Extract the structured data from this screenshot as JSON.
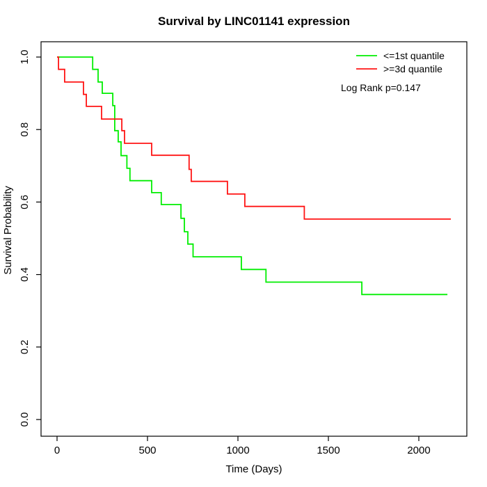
{
  "chart_data": {
    "type": "line",
    "subtype": "kaplan-meier-step",
    "title": "Survival by LINC01141 expression",
    "xlabel": "Time (Days)",
    "ylabel": "Survival Probability",
    "xticks": [
      0,
      500,
      1000,
      1500,
      2000
    ],
    "yticks": [
      "0.0",
      "0.2",
      "0.4",
      "0.6",
      "0.8",
      "1.0"
    ],
    "xlim": [
      -88,
      2265
    ],
    "ylim": [
      -0.046,
      1.042
    ],
    "grid": false,
    "frame": true,
    "background_color": "#ffffff",
    "axis_color": "#000000",
    "legend": {
      "position": "top-right",
      "entries": [
        {
          "label": "<=1st quantile",
          "color": "#00ee00"
        },
        {
          "label": ">=3d quantile",
          "color": "#ff1414"
        }
      ],
      "note": "Log Rank p=0.147"
    },
    "series": [
      {
        "name": "<=1st quantile",
        "color": "#00ee00",
        "points": [
          [
            0,
            1.0
          ],
          [
            197,
            0.966
          ],
          [
            227,
            0.931
          ],
          [
            250,
            0.9
          ],
          [
            308,
            0.866
          ],
          [
            319,
            0.797
          ],
          [
            338,
            0.766
          ],
          [
            354,
            0.728
          ],
          [
            386,
            0.693
          ],
          [
            403,
            0.659
          ],
          [
            523,
            0.626
          ],
          [
            576,
            0.593
          ],
          [
            685,
            0.555
          ],
          [
            704,
            0.518
          ],
          [
            723,
            0.484
          ],
          [
            752,
            0.449
          ],
          [
            1019,
            0.414
          ],
          [
            1155,
            0.379
          ],
          [
            1685,
            0.345
          ],
          [
            2158,
            0.345
          ]
        ]
      },
      {
        "name": ">=3d quantile",
        "color": "#ff1414",
        "points": [
          [
            0,
            1.0
          ],
          [
            8,
            0.966
          ],
          [
            42,
            0.931
          ],
          [
            146,
            0.897
          ],
          [
            162,
            0.864
          ],
          [
            246,
            0.829
          ],
          [
            358,
            0.797
          ],
          [
            373,
            0.762
          ],
          [
            523,
            0.729
          ],
          [
            730,
            0.69
          ],
          [
            742,
            0.657
          ],
          [
            942,
            0.622
          ],
          [
            1038,
            0.588
          ],
          [
            1367,
            0.553
          ],
          [
            2177,
            0.553
          ]
        ]
      }
    ]
  }
}
